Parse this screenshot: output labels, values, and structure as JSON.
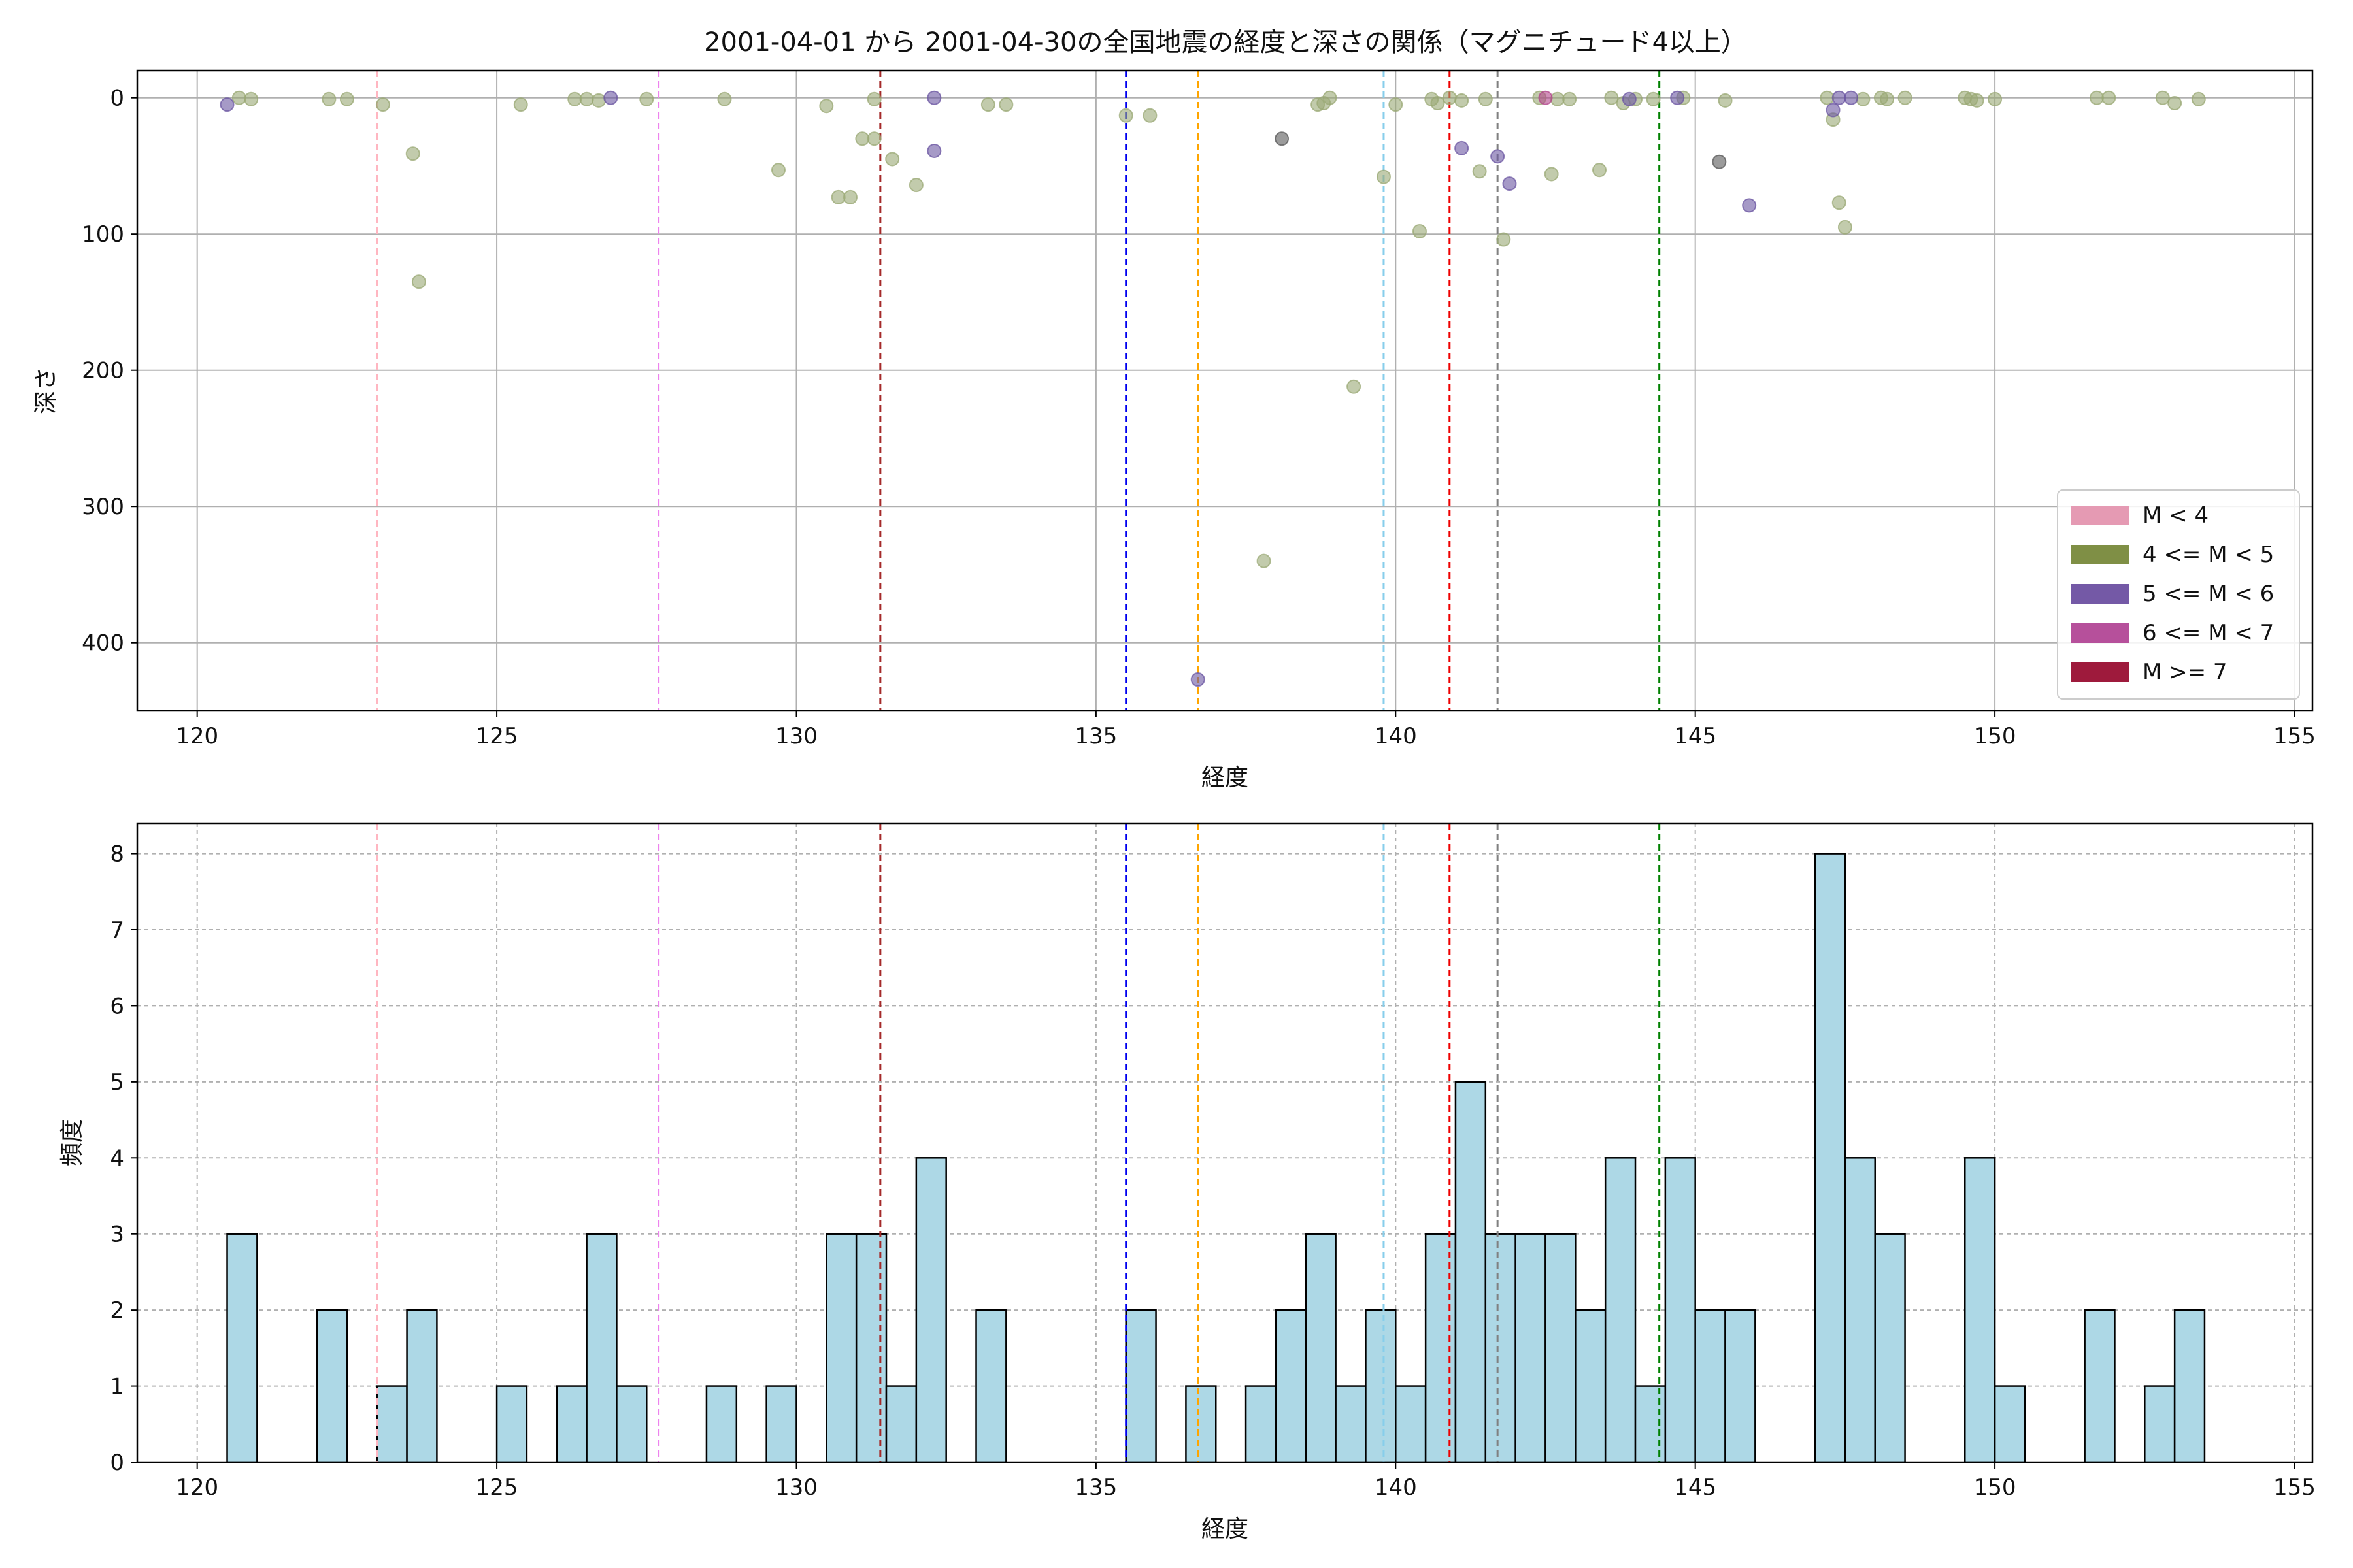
{
  "figure_title": "2001-04-01 から 2001-04-30の全国地震の経度と深さの関係（マグニチュード4以上）",
  "chart_data": [
    {
      "type": "scatter",
      "title": "2001-04-01 から 2001-04-30の全国地震の経度と深さの関係（マグニチュード4以上）",
      "xlabel": "経度",
      "ylabel": "深さ",
      "xlim": [
        119,
        155.3
      ],
      "ylim": [
        450,
        -20
      ],
      "y_inverted": true,
      "xticks": [
        120,
        125,
        130,
        135,
        140,
        145,
        150,
        155
      ],
      "yticks": [
        0,
        100,
        200,
        300,
        400
      ],
      "grid": true,
      "legend_position": "lower-right",
      "legend": [
        {
          "label": "M < 4",
          "color": "#e59ab3"
        },
        {
          "label": "4 <= M < 5",
          "color": "#7f8f45"
        },
        {
          "label": "5 <= M < 6",
          "color": "#7459a6"
        },
        {
          "label": "6 <= M < 7",
          "color": "#b6509b"
        },
        {
          "label": "M >= 7",
          "color": "#9e1a3c"
        }
      ],
      "vlines": [
        {
          "x": 123.0,
          "color": "#ffb6c1"
        },
        {
          "x": 127.7,
          "color": "#ee82ee"
        },
        {
          "x": 131.4,
          "color": "#a52a2a"
        },
        {
          "x": 135.5,
          "color": "#0000ee"
        },
        {
          "x": 136.7,
          "color": "#ffa500"
        },
        {
          "x": 139.8,
          "color": "#87ceeb"
        },
        {
          "x": 140.9,
          "color": "#ee0000"
        },
        {
          "x": 141.7,
          "color": "#808080"
        },
        {
          "x": 144.4,
          "color": "#008000"
        }
      ],
      "series": [
        {
          "color": "#9aa874",
          "points": [
            [
              120.7,
              0
            ],
            [
              120.9,
              1
            ],
            [
              122.2,
              1
            ],
            [
              122.5,
              1
            ],
            [
              123.1,
              5
            ],
            [
              123.6,
              41
            ],
            [
              123.7,
              135
            ],
            [
              125.4,
              5
            ],
            [
              126.3,
              1
            ],
            [
              126.5,
              1
            ],
            [
              126.7,
              2
            ],
            [
              127.5,
              1
            ],
            [
              128.8,
              1
            ],
            [
              129.7,
              53
            ],
            [
              130.5,
              6
            ],
            [
              130.7,
              73
            ],
            [
              130.9,
              73
            ],
            [
              131.1,
              30
            ],
            [
              131.3,
              30
            ],
            [
              131.3,
              1
            ],
            [
              131.6,
              45
            ],
            [
              132.0,
              64
            ],
            [
              133.2,
              5
            ],
            [
              133.5,
              5
            ],
            [
              135.5,
              13
            ],
            [
              135.9,
              13
            ],
            [
              138.7,
              5
            ],
            [
              138.8,
              4
            ],
            [
              138.9,
              0
            ],
            [
              139.3,
              212
            ],
            [
              137.8,
              340
            ],
            [
              139.8,
              58
            ],
            [
              140.0,
              5
            ],
            [
              140.4,
              98
            ],
            [
              140.6,
              1
            ],
            [
              140.7,
              4
            ],
            [
              140.9,
              0
            ],
            [
              141.1,
              2
            ],
            [
              141.4,
              54
            ],
            [
              141.5,
              1
            ],
            [
              141.8,
              104
            ],
            [
              142.4,
              0
            ],
            [
              142.6,
              56
            ],
            [
              142.7,
              1
            ],
            [
              142.9,
              1
            ],
            [
              143.4,
              53
            ],
            [
              143.6,
              0
            ],
            [
              143.8,
              4
            ],
            [
              144.0,
              1
            ],
            [
              144.3,
              1
            ],
            [
              144.8,
              0
            ],
            [
              145.5,
              2
            ],
            [
              147.2,
              0
            ],
            [
              147.3,
              16
            ],
            [
              147.4,
              77
            ],
            [
              147.5,
              95
            ],
            [
              147.8,
              1
            ],
            [
              148.1,
              0
            ],
            [
              148.2,
              1
            ],
            [
              148.5,
              0
            ],
            [
              149.5,
              0
            ],
            [
              149.6,
              1
            ],
            [
              149.7,
              2
            ],
            [
              150.0,
              1
            ],
            [
              151.7,
              0
            ],
            [
              151.9,
              0
            ],
            [
              152.8,
              0
            ],
            [
              153.0,
              4
            ],
            [
              153.4,
              1
            ]
          ]
        },
        {
          "color": "#6b56a2",
          "points": [
            [
              120.5,
              5
            ],
            [
              126.9,
              0
            ],
            [
              132.3,
              0
            ],
            [
              132.3,
              39
            ],
            [
              136.7,
              427
            ],
            [
              141.1,
              37
            ],
            [
              141.7,
              43
            ],
            [
              141.9,
              63
            ],
            [
              143.9,
              1
            ],
            [
              144.7,
              0
            ],
            [
              145.9,
              79
            ],
            [
              147.3,
              9
            ],
            [
              147.4,
              0
            ],
            [
              147.6,
              0
            ]
          ]
        },
        {
          "color": "#b2458b",
          "points": [
            [
              142.5,
              0
            ]
          ]
        },
        {
          "color": "#585858",
          "points": [
            [
              138.1,
              30
            ],
            [
              145.4,
              47
            ]
          ]
        }
      ]
    },
    {
      "type": "bar",
      "xlabel": "経度",
      "ylabel": "頻度",
      "xlim": [
        119,
        155.3
      ],
      "ylim": [
        0,
        8.4
      ],
      "xticks": [
        120,
        125,
        130,
        135,
        140,
        145,
        150,
        155
      ],
      "yticks": [
        0,
        1,
        2,
        3,
        4,
        5,
        6,
        7,
        8
      ],
      "grid": true,
      "bar_color": "#add8e6",
      "bin_width": 0.5,
      "bins": [
        [
          120.5,
          3
        ],
        [
          122.0,
          2
        ],
        [
          123.0,
          1
        ],
        [
          123.5,
          2
        ],
        [
          125.0,
          1
        ],
        [
          126.0,
          1
        ],
        [
          126.5,
          3
        ],
        [
          127.0,
          1
        ],
        [
          128.5,
          1
        ],
        [
          129.5,
          1
        ],
        [
          130.5,
          3
        ],
        [
          131.0,
          3
        ],
        [
          131.5,
          1
        ],
        [
          132.0,
          4
        ],
        [
          133.0,
          2
        ],
        [
          135.5,
          2
        ],
        [
          136.5,
          1
        ],
        [
          137.5,
          1
        ],
        [
          138.0,
          2
        ],
        [
          138.5,
          3
        ],
        [
          139.0,
          1
        ],
        [
          139.5,
          2
        ],
        [
          140.0,
          1
        ],
        [
          140.5,
          3
        ],
        [
          141.0,
          5
        ],
        [
          141.5,
          3
        ],
        [
          142.0,
          3
        ],
        [
          142.5,
          3
        ],
        [
          143.0,
          2
        ],
        [
          143.5,
          4
        ],
        [
          144.0,
          1
        ],
        [
          144.5,
          4
        ],
        [
          145.0,
          2
        ],
        [
          145.5,
          2
        ],
        [
          147.0,
          8
        ],
        [
          147.5,
          4
        ],
        [
          148.0,
          3
        ],
        [
          149.5,
          4
        ],
        [
          150.0,
          1
        ],
        [
          151.5,
          2
        ],
        [
          152.5,
          1
        ],
        [
          153.0,
          2
        ]
      ],
      "vlines": [
        {
          "x": 123.0,
          "color": "#ffb6c1"
        },
        {
          "x": 127.7,
          "color": "#ee82ee"
        },
        {
          "x": 131.4,
          "color": "#a52a2a"
        },
        {
          "x": 135.5,
          "color": "#0000ee"
        },
        {
          "x": 136.7,
          "color": "#ffa500"
        },
        {
          "x": 139.8,
          "color": "#87ceeb"
        },
        {
          "x": 140.9,
          "color": "#ee0000"
        },
        {
          "x": 141.7,
          "color": "#808080"
        },
        {
          "x": 144.4,
          "color": "#008000"
        }
      ]
    }
  ]
}
